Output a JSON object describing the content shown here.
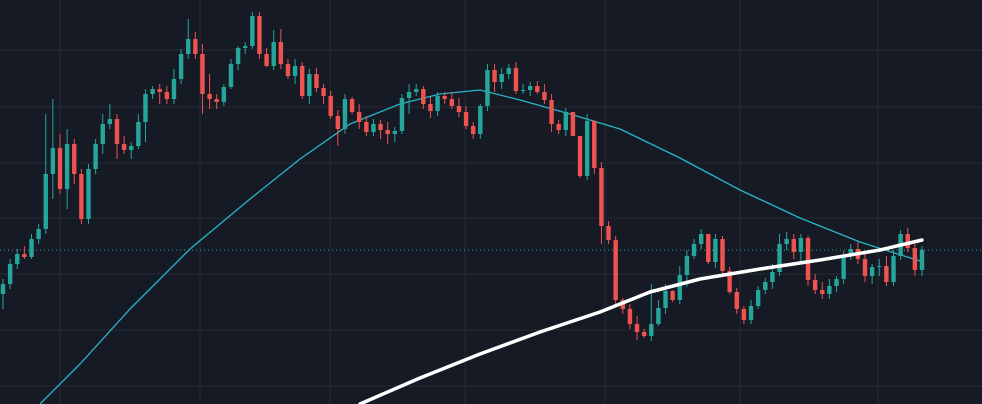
{
  "chart_data": {
    "type": "candlestick",
    "title": "",
    "xlabel": "",
    "ylabel": "",
    "ylim": [
      0,
      404
    ],
    "grid": true,
    "legend": "none",
    "colors": {
      "background": "#161a25",
      "grid": "#262a35",
      "up": "#26a69a",
      "down": "#ef5350",
      "ma_fast": "#27b7c9",
      "ma_slow": "#ffffff",
      "price_line": "#26a69a"
    },
    "last_price": 154,
    "series": [
      {
        "type": "candles",
        "values": [
          {
            "o": 110,
            "h": 125,
            "l": 95,
            "c": 120
          },
          {
            "o": 120,
            "h": 145,
            "l": 115,
            "c": 140
          },
          {
            "o": 140,
            "h": 155,
            "l": 135,
            "c": 150
          },
          {
            "o": 150,
            "h": 158,
            "l": 145,
            "c": 147
          },
          {
            "o": 147,
            "h": 170,
            "l": 145,
            "c": 165
          },
          {
            "o": 165,
            "h": 180,
            "l": 160,
            "c": 175
          },
          {
            "o": 175,
            "h": 290,
            "l": 170,
            "c": 230
          },
          {
            "o": 230,
            "h": 305,
            "l": 205,
            "c": 256
          },
          {
            "o": 256,
            "h": 270,
            "l": 210,
            "c": 215
          },
          {
            "o": 215,
            "h": 275,
            "l": 195,
            "c": 260
          },
          {
            "o": 260,
            "h": 265,
            "l": 220,
            "c": 230
          },
          {
            "o": 230,
            "h": 235,
            "l": 180,
            "c": 185
          },
          {
            "o": 185,
            "h": 240,
            "l": 180,
            "c": 235
          },
          {
            "o": 235,
            "h": 265,
            "l": 230,
            "c": 260
          },
          {
            "o": 260,
            "h": 290,
            "l": 250,
            "c": 280
          },
          {
            "o": 280,
            "h": 300,
            "l": 275,
            "c": 285
          },
          {
            "o": 285,
            "h": 290,
            "l": 245,
            "c": 260
          },
          {
            "o": 260,
            "h": 268,
            "l": 250,
            "c": 254
          },
          {
            "o": 254,
            "h": 262,
            "l": 245,
            "c": 258
          },
          {
            "o": 258,
            "h": 290,
            "l": 255,
            "c": 282
          },
          {
            "o": 282,
            "h": 315,
            "l": 262,
            "c": 310
          },
          {
            "o": 310,
            "h": 318,
            "l": 305,
            "c": 315
          },
          {
            "o": 315,
            "h": 320,
            "l": 300,
            "c": 312
          },
          {
            "o": 312,
            "h": 318,
            "l": 300,
            "c": 305
          },
          {
            "o": 305,
            "h": 335,
            "l": 300,
            "c": 325
          },
          {
            "o": 325,
            "h": 355,
            "l": 320,
            "c": 350
          },
          {
            "o": 350,
            "h": 385,
            "l": 345,
            "c": 365
          },
          {
            "o": 365,
            "h": 372,
            "l": 345,
            "c": 350
          },
          {
            "o": 350,
            "h": 360,
            "l": 290,
            "c": 310
          },
          {
            "o": 310,
            "h": 330,
            "l": 295,
            "c": 305
          },
          {
            "o": 305,
            "h": 310,
            "l": 295,
            "c": 302
          },
          {
            "o": 302,
            "h": 320,
            "l": 298,
            "c": 317
          },
          {
            "o": 317,
            "h": 345,
            "l": 315,
            "c": 340
          },
          {
            "o": 340,
            "h": 358,
            "l": 334,
            "c": 356
          },
          {
            "o": 356,
            "h": 362,
            "l": 350,
            "c": 358
          },
          {
            "o": 358,
            "h": 392,
            "l": 355,
            "c": 388
          },
          {
            "o": 388,
            "h": 392,
            "l": 345,
            "c": 350
          },
          {
            "o": 350,
            "h": 356,
            "l": 337,
            "c": 338
          },
          {
            "o": 338,
            "h": 374,
            "l": 334,
            "c": 362
          },
          {
            "o": 362,
            "h": 375,
            "l": 335,
            "c": 340
          },
          {
            "o": 340,
            "h": 345,
            "l": 325,
            "c": 328
          },
          {
            "o": 328,
            "h": 345,
            "l": 320,
            "c": 338
          },
          {
            "o": 338,
            "h": 342,
            "l": 305,
            "c": 308
          },
          {
            "o": 308,
            "h": 335,
            "l": 300,
            "c": 330
          },
          {
            "o": 330,
            "h": 336,
            "l": 312,
            "c": 316
          },
          {
            "o": 316,
            "h": 320,
            "l": 300,
            "c": 308
          },
          {
            "o": 308,
            "h": 313,
            "l": 285,
            "c": 288
          },
          {
            "o": 288,
            "h": 294,
            "l": 258,
            "c": 275
          },
          {
            "o": 275,
            "h": 310,
            "l": 270,
            "c": 305
          },
          {
            "o": 305,
            "h": 307,
            "l": 290,
            "c": 292
          },
          {
            "o": 292,
            "h": 300,
            "l": 275,
            "c": 282
          },
          {
            "o": 282,
            "h": 288,
            "l": 268,
            "c": 272
          },
          {
            "o": 272,
            "h": 285,
            "l": 268,
            "c": 280
          },
          {
            "o": 280,
            "h": 284,
            "l": 265,
            "c": 274
          },
          {
            "o": 274,
            "h": 282,
            "l": 260,
            "c": 270
          },
          {
            "o": 270,
            "h": 277,
            "l": 262,
            "c": 273
          },
          {
            "o": 273,
            "h": 310,
            "l": 270,
            "c": 306
          },
          {
            "o": 306,
            "h": 320,
            "l": 290,
            "c": 312
          },
          {
            "o": 312,
            "h": 320,
            "l": 308,
            "c": 315
          },
          {
            "o": 315,
            "h": 318,
            "l": 295,
            "c": 300
          },
          {
            "o": 300,
            "h": 307,
            "l": 286,
            "c": 293
          },
          {
            "o": 293,
            "h": 312,
            "l": 288,
            "c": 308
          },
          {
            "o": 308,
            "h": 312,
            "l": 300,
            "c": 305
          },
          {
            "o": 305,
            "h": 312,
            "l": 295,
            "c": 298
          },
          {
            "o": 298,
            "h": 306,
            "l": 287,
            "c": 292
          },
          {
            "o": 292,
            "h": 298,
            "l": 275,
            "c": 278
          },
          {
            "o": 278,
            "h": 282,
            "l": 265,
            "c": 270
          },
          {
            "o": 270,
            "h": 300,
            "l": 265,
            "c": 298
          },
          {
            "o": 298,
            "h": 340,
            "l": 293,
            "c": 334
          },
          {
            "o": 334,
            "h": 340,
            "l": 312,
            "c": 322
          },
          {
            "o": 322,
            "h": 336,
            "l": 315,
            "c": 330
          },
          {
            "o": 330,
            "h": 340,
            "l": 325,
            "c": 336
          },
          {
            "o": 336,
            "h": 342,
            "l": 310,
            "c": 313
          },
          {
            "o": 313,
            "h": 320,
            "l": 310,
            "c": 314
          },
          {
            "o": 314,
            "h": 322,
            "l": 308,
            "c": 318
          },
          {
            "o": 318,
            "h": 323,
            "l": 310,
            "c": 312
          },
          {
            "o": 312,
            "h": 320,
            "l": 300,
            "c": 304
          },
          {
            "o": 304,
            "h": 310,
            "l": 272,
            "c": 280
          },
          {
            "o": 280,
            "h": 284,
            "l": 270,
            "c": 274
          },
          {
            "o": 274,
            "h": 296,
            "l": 268,
            "c": 292
          },
          {
            "o": 292,
            "h": 286,
            "l": 270,
            "c": 268
          },
          {
            "o": 268,
            "h": 256,
            "l": 226,
            "c": 228
          },
          {
            "o": 228,
            "h": 290,
            "l": 224,
            "c": 283
          },
          {
            "o": 283,
            "h": 284,
            "l": 230,
            "c": 236
          },
          {
            "o": 236,
            "h": 242,
            "l": 160,
            "c": 178
          },
          {
            "o": 178,
            "h": 183,
            "l": 160,
            "c": 164
          },
          {
            "o": 164,
            "h": 168,
            "l": 100,
            "c": 104
          },
          {
            "o": 104,
            "h": 106,
            "l": 90,
            "c": 95
          },
          {
            "o": 95,
            "h": 100,
            "l": 75,
            "c": 80
          },
          {
            "o": 80,
            "h": 88,
            "l": 64,
            "c": 72
          },
          {
            "o": 72,
            "h": 75,
            "l": 66,
            "c": 68
          },
          {
            "o": 68,
            "h": 120,
            "l": 63,
            "c": 80
          },
          {
            "o": 80,
            "h": 104,
            "l": 78,
            "c": 96
          },
          {
            "o": 96,
            "h": 120,
            "l": 90,
            "c": 113
          },
          {
            "o": 113,
            "h": 114,
            "l": 102,
            "c": 104
          },
          {
            "o": 104,
            "h": 138,
            "l": 100,
            "c": 129
          },
          {
            "o": 129,
            "h": 154,
            "l": 117,
            "c": 148
          },
          {
            "o": 148,
            "h": 165,
            "l": 145,
            "c": 160
          },
          {
            "o": 160,
            "h": 175,
            "l": 155,
            "c": 170
          },
          {
            "o": 170,
            "h": 160,
            "l": 140,
            "c": 142
          },
          {
            "o": 142,
            "h": 170,
            "l": 136,
            "c": 165
          },
          {
            "o": 165,
            "h": 168,
            "l": 130,
            "c": 133
          },
          {
            "o": 133,
            "h": 137,
            "l": 110,
            "c": 112
          },
          {
            "o": 112,
            "h": 116,
            "l": 90,
            "c": 95
          },
          {
            "o": 95,
            "h": 98,
            "l": 80,
            "c": 84
          },
          {
            "o": 84,
            "h": 104,
            "l": 80,
            "c": 98
          },
          {
            "o": 98,
            "h": 118,
            "l": 95,
            "c": 114
          },
          {
            "o": 114,
            "h": 126,
            "l": 110,
            "c": 122
          },
          {
            "o": 122,
            "h": 140,
            "l": 115,
            "c": 132
          },
          {
            "o": 132,
            "h": 170,
            "l": 128,
            "c": 160
          },
          {
            "o": 160,
            "h": 172,
            "l": 154,
            "c": 165
          },
          {
            "o": 165,
            "h": 170,
            "l": 145,
            "c": 152
          },
          {
            "o": 152,
            "h": 170,
            "l": 140,
            "c": 166
          },
          {
            "o": 166,
            "h": 168,
            "l": 118,
            "c": 124
          },
          {
            "o": 124,
            "h": 130,
            "l": 110,
            "c": 114
          },
          {
            "o": 114,
            "h": 122,
            "l": 105,
            "c": 110
          },
          {
            "o": 110,
            "h": 125,
            "l": 105,
            "c": 118
          },
          {
            "o": 118,
            "h": 128,
            "l": 112,
            "c": 125
          },
          {
            "o": 125,
            "h": 153,
            "l": 120,
            "c": 148
          },
          {
            "o": 148,
            "h": 160,
            "l": 144,
            "c": 155
          },
          {
            "o": 155,
            "h": 162,
            "l": 140,
            "c": 145
          },
          {
            "o": 145,
            "h": 152,
            "l": 122,
            "c": 128
          },
          {
            "o": 128,
            "h": 140,
            "l": 120,
            "c": 137
          },
          {
            "o": 137,
            "h": 145,
            "l": 128,
            "c": 138
          },
          {
            "o": 138,
            "h": 148,
            "l": 118,
            "c": 122
          },
          {
            "o": 122,
            "h": 154,
            "l": 118,
            "c": 148
          },
          {
            "o": 148,
            "h": 174,
            "l": 144,
            "c": 170
          },
          {
            "o": 170,
            "h": 176,
            "l": 152,
            "c": 156
          },
          {
            "o": 156,
            "h": 160,
            "l": 128,
            "c": 134
          },
          {
            "o": 134,
            "h": 158,
            "l": 128,
            "c": 154
          }
        ]
      },
      {
        "type": "line",
        "values": [
          {
            "x": 40,
            "y": 0
          },
          {
            "x": 80,
            "y": 40
          },
          {
            "x": 130,
            "y": 95
          },
          {
            "x": 190,
            "y": 155
          },
          {
            "x": 250,
            "y": 205
          },
          {
            "x": 300,
            "y": 245
          },
          {
            "x": 350,
            "y": 280
          },
          {
            "x": 400,
            "y": 300
          },
          {
            "x": 440,
            "y": 310
          },
          {
            "x": 480,
            "y": 314
          },
          {
            "x": 520,
            "y": 304
          },
          {
            "x": 570,
            "y": 290
          },
          {
            "x": 620,
            "y": 275
          },
          {
            "x": 680,
            "y": 246
          },
          {
            "x": 740,
            "y": 214
          },
          {
            "x": 800,
            "y": 186
          },
          {
            "x": 860,
            "y": 162
          },
          {
            "x": 920,
            "y": 143
          }
        ]
      },
      {
        "type": "line",
        "values": [
          {
            "x": 360,
            "y": 0
          },
          {
            "x": 420,
            "y": 26
          },
          {
            "x": 480,
            "y": 50
          },
          {
            "x": 540,
            "y": 72
          },
          {
            "x": 600,
            "y": 92
          },
          {
            "x": 650,
            "y": 112
          },
          {
            "x": 700,
            "y": 125
          },
          {
            "x": 760,
            "y": 135
          },
          {
            "x": 820,
            "y": 144
          },
          {
            "x": 880,
            "y": 154
          },
          {
            "x": 922,
            "y": 164
          }
        ]
      }
    ]
  }
}
